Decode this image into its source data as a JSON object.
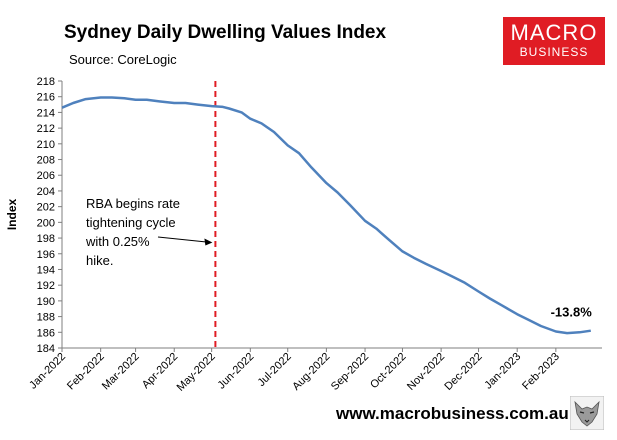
{
  "title": "Sydney Daily Dwelling Values Index",
  "subtitle": "Source: CoreLogic",
  "logo": {
    "top": "MACRO",
    "bottom": "BUSINESS",
    "color": "#e01c24"
  },
  "footer": {
    "url": "www.macrobusiness.com.au",
    "icon": "wolf-logo-icon"
  },
  "chart_data": {
    "type": "line",
    "ylabel": "Index",
    "xlabel": "",
    "ylim": [
      184,
      218
    ],
    "yticks": [
      184,
      186,
      188,
      190,
      192,
      194,
      196,
      198,
      200,
      202,
      204,
      206,
      208,
      210,
      212,
      214,
      216,
      218
    ],
    "xlim": [
      "2022-01-01",
      "2023-03-10"
    ],
    "xticks": [
      "Jan-2022",
      "Feb-2022",
      "Mar-2022",
      "Apr-2022",
      "May-2022",
      "Jun-2022",
      "Jul-2022",
      "Aug-2022",
      "Sep-2022",
      "Oct-2022",
      "Nov-2022",
      "Dec-2022",
      "Jan-2023",
      "Feb-2023"
    ],
    "xtick_dates": [
      "2022-01-01",
      "2022-02-01",
      "2022-03-01",
      "2022-04-01",
      "2022-05-01",
      "2022-06-01",
      "2022-07-01",
      "2022-08-01",
      "2022-09-01",
      "2022-10-01",
      "2022-11-01",
      "2022-12-01",
      "2023-01-01",
      "2023-02-01"
    ],
    "grid": false,
    "line_color": "#4f81bd",
    "series": [
      {
        "points": [
          [
            "2022-01-01",
            214.6
          ],
          [
            "2022-01-10",
            215.2
          ],
          [
            "2022-01-20",
            215.7
          ],
          [
            "2022-02-01",
            215.9
          ],
          [
            "2022-02-10",
            215.9
          ],
          [
            "2022-02-20",
            215.8
          ],
          [
            "2022-03-01",
            215.6
          ],
          [
            "2022-03-10",
            215.6
          ],
          [
            "2022-03-20",
            215.4
          ],
          [
            "2022-04-01",
            215.2
          ],
          [
            "2022-04-10",
            215.2
          ],
          [
            "2022-04-20",
            215.0
          ],
          [
            "2022-05-01",
            214.8
          ],
          [
            "2022-05-10",
            214.7
          ],
          [
            "2022-05-15",
            214.5
          ],
          [
            "2022-05-25",
            214.0
          ],
          [
            "2022-06-01",
            213.2
          ],
          [
            "2022-06-10",
            212.6
          ],
          [
            "2022-06-20",
            211.5
          ],
          [
            "2022-07-01",
            209.8
          ],
          [
            "2022-07-10",
            208.8
          ],
          [
            "2022-07-20",
            207.0
          ],
          [
            "2022-08-01",
            205.0
          ],
          [
            "2022-08-10",
            203.8
          ],
          [
            "2022-08-20",
            202.2
          ],
          [
            "2022-09-01",
            200.2
          ],
          [
            "2022-09-10",
            199.2
          ],
          [
            "2022-09-20",
            197.8
          ],
          [
            "2022-10-01",
            196.3
          ],
          [
            "2022-10-10",
            195.5
          ],
          [
            "2022-10-20",
            194.7
          ],
          [
            "2022-11-01",
            193.8
          ],
          [
            "2022-11-10",
            193.1
          ],
          [
            "2022-11-20",
            192.3
          ],
          [
            "2022-12-01",
            191.2
          ],
          [
            "2022-12-10",
            190.3
          ],
          [
            "2022-12-20",
            189.4
          ],
          [
            "2023-01-01",
            188.3
          ],
          [
            "2023-01-10",
            187.6
          ],
          [
            "2023-01-20",
            186.8
          ],
          [
            "2023-02-01",
            186.1
          ],
          [
            "2023-02-10",
            185.9
          ],
          [
            "2023-02-20",
            186.0
          ],
          [
            "2023-03-01",
            186.2
          ]
        ]
      }
    ],
    "event_line": {
      "date": "2022-05-04",
      "color": "#e01c24",
      "style": "dashed"
    },
    "annotations": [
      {
        "lines": [
          "RBA begins rate",
          "tightening cycle",
          "with 0.25%",
          "hike."
        ],
        "arrow_to": "event_line"
      },
      {
        "text": "-13.8%",
        "anchor": "series_end"
      }
    ]
  }
}
